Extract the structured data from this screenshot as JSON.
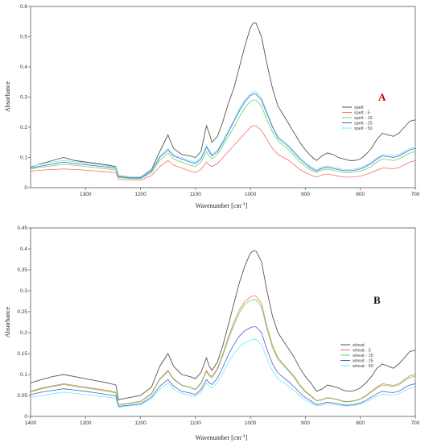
{
  "colors": {
    "series": [
      "#555555",
      "#ff6a6a",
      "#55dd55",
      "#5555cc",
      "#66eeff"
    ]
  },
  "chart_data": [
    {
      "type": "line",
      "panel_label": "A",
      "xlabel": "Wavenumber [cm",
      "xlabel_sup": "-1",
      "xlabel_end": "]",
      "ylabel": "Absorbance",
      "xlim": [
        1400,
        700
      ],
      "ylim": [
        0,
        0.6
      ],
      "x_reversed": true,
      "xticks": [
        1300,
        1200,
        1100,
        1000,
        900,
        800,
        700
      ],
      "yticks": [
        0,
        0.1,
        0.2,
        0.3,
        0.4,
        0.5,
        0.6
      ],
      "ytick_labels": [
        "0",
        "0.1",
        "0.2",
        "0.3",
        "0.4",
        "0.5",
        "0.6"
      ],
      "legend_position": "right",
      "x": [
        1400,
        1380,
        1360,
        1340,
        1320,
        1300,
        1280,
        1260,
        1245,
        1240,
        1220,
        1200,
        1180,
        1165,
        1150,
        1140,
        1125,
        1110,
        1100,
        1090,
        1080,
        1075,
        1070,
        1060,
        1050,
        1040,
        1030,
        1020,
        1010,
        1000,
        995,
        990,
        980,
        970,
        960,
        950,
        940,
        930,
        920,
        910,
        900,
        890,
        880,
        870,
        860,
        850,
        840,
        830,
        820,
        810,
        800,
        790,
        780,
        770,
        760,
        750,
        740,
        730,
        720,
        710,
        700
      ],
      "series": [
        {
          "name": "spelt",
          "values": [
            0.068,
            0.08,
            0.09,
            0.1,
            0.09,
            0.085,
            0.08,
            0.075,
            0.07,
            0.04,
            0.035,
            0.035,
            0.06,
            0.12,
            0.175,
            0.13,
            0.11,
            0.105,
            0.1,
            0.12,
            0.205,
            0.18,
            0.15,
            0.17,
            0.22,
            0.28,
            0.33,
            0.4,
            0.47,
            0.53,
            0.545,
            0.545,
            0.5,
            0.41,
            0.33,
            0.27,
            0.24,
            0.21,
            0.18,
            0.15,
            0.125,
            0.105,
            0.09,
            0.105,
            0.115,
            0.11,
            0.1,
            0.095,
            0.09,
            0.09,
            0.095,
            0.11,
            0.13,
            0.16,
            0.18,
            0.175,
            0.17,
            0.18,
            0.2,
            0.22,
            0.225
          ]
        },
        {
          "name": "spelt - 5",
          "values": [
            0.055,
            0.058,
            0.06,
            0.062,
            0.06,
            0.058,
            0.055,
            0.052,
            0.05,
            0.028,
            0.025,
            0.025,
            0.04,
            0.07,
            0.09,
            0.075,
            0.065,
            0.055,
            0.05,
            0.06,
            0.085,
            0.075,
            0.07,
            0.08,
            0.1,
            0.12,
            0.14,
            0.16,
            0.18,
            0.2,
            0.205,
            0.205,
            0.19,
            0.16,
            0.13,
            0.11,
            0.1,
            0.09,
            0.075,
            0.06,
            0.05,
            0.042,
            0.035,
            0.042,
            0.045,
            0.042,
            0.038,
            0.035,
            0.035,
            0.036,
            0.038,
            0.044,
            0.05,
            0.058,
            0.065,
            0.064,
            0.063,
            0.066,
            0.075,
            0.085,
            0.09
          ]
        },
        {
          "name": "spelt - 15",
          "values": [
            0.062,
            0.068,
            0.072,
            0.078,
            0.074,
            0.07,
            0.066,
            0.062,
            0.058,
            0.034,
            0.03,
            0.03,
            0.05,
            0.09,
            0.115,
            0.095,
            0.085,
            0.075,
            0.07,
            0.085,
            0.12,
            0.105,
            0.095,
            0.11,
            0.14,
            0.17,
            0.2,
            0.235,
            0.265,
            0.285,
            0.29,
            0.29,
            0.27,
            0.225,
            0.185,
            0.155,
            0.14,
            0.125,
            0.105,
            0.085,
            0.07,
            0.058,
            0.05,
            0.058,
            0.062,
            0.058,
            0.054,
            0.05,
            0.05,
            0.052,
            0.055,
            0.062,
            0.07,
            0.085,
            0.095,
            0.093,
            0.09,
            0.095,
            0.105,
            0.115,
            0.12
          ]
        },
        {
          "name": "spelt - 25",
          "values": [
            0.065,
            0.072,
            0.078,
            0.085,
            0.08,
            0.076,
            0.072,
            0.068,
            0.064,
            0.037,
            0.032,
            0.032,
            0.055,
            0.1,
            0.125,
            0.105,
            0.095,
            0.085,
            0.08,
            0.095,
            0.135,
            0.12,
            0.105,
            0.12,
            0.15,
            0.185,
            0.22,
            0.255,
            0.285,
            0.305,
            0.31,
            0.31,
            0.29,
            0.245,
            0.2,
            0.165,
            0.15,
            0.135,
            0.115,
            0.095,
            0.078,
            0.065,
            0.055,
            0.064,
            0.068,
            0.064,
            0.06,
            0.056,
            0.056,
            0.058,
            0.062,
            0.07,
            0.08,
            0.095,
            0.105,
            0.103,
            0.1,
            0.105,
            0.115,
            0.125,
            0.13
          ]
        },
        {
          "name": "spelt - 50",
          "values": [
            0.07,
            0.078,
            0.085,
            0.09,
            0.086,
            0.082,
            0.077,
            0.072,
            0.068,
            0.04,
            0.035,
            0.035,
            0.058,
            0.105,
            0.13,
            0.11,
            0.1,
            0.09,
            0.085,
            0.1,
            0.14,
            0.125,
            0.11,
            0.125,
            0.155,
            0.19,
            0.225,
            0.262,
            0.292,
            0.312,
            0.318,
            0.318,
            0.298,
            0.252,
            0.206,
            0.17,
            0.155,
            0.14,
            0.12,
            0.1,
            0.083,
            0.07,
            0.06,
            0.068,
            0.072,
            0.068,
            0.064,
            0.06,
            0.06,
            0.062,
            0.066,
            0.074,
            0.084,
            0.1,
            0.11,
            0.108,
            0.105,
            0.11,
            0.12,
            0.13,
            0.135
          ]
        }
      ]
    },
    {
      "type": "line",
      "panel_label": "B",
      "xlabel": "Wavenumber [cm",
      "xlabel_sup": "-1",
      "xlabel_end": "]",
      "ylabel": "Absorbance",
      "xlim": [
        1400,
        700
      ],
      "ylim": [
        0,
        0.45
      ],
      "x_reversed": true,
      "xticks": [
        1400,
        1300,
        1200,
        1100,
        1000,
        900,
        800,
        700
      ],
      "yticks": [
        0,
        0.05,
        0.1,
        0.15,
        0.2,
        0.25,
        0.3,
        0.35,
        0.4,
        0.45
      ],
      "ytick_labels": [
        "0",
        "0.05",
        "0.1",
        "0.15",
        "0.2",
        "0.25",
        "0.3",
        "0.35",
        "0.4",
        "0.45"
      ],
      "legend_position": "right",
      "x": [
        1400,
        1380,
        1360,
        1340,
        1320,
        1300,
        1280,
        1260,
        1245,
        1240,
        1220,
        1200,
        1180,
        1165,
        1150,
        1140,
        1125,
        1110,
        1100,
        1090,
        1080,
        1075,
        1070,
        1060,
        1050,
        1040,
        1030,
        1020,
        1010,
        1000,
        995,
        990,
        980,
        970,
        960,
        950,
        940,
        930,
        920,
        910,
        900,
        890,
        880,
        870,
        860,
        850,
        840,
        830,
        820,
        810,
        800,
        790,
        780,
        770,
        760,
        750,
        740,
        730,
        720,
        710,
        700
      ],
      "series": [
        {
          "name": "wheat",
          "values": [
            0.08,
            0.088,
            0.095,
            0.1,
            0.095,
            0.09,
            0.085,
            0.08,
            0.075,
            0.04,
            0.045,
            0.05,
            0.07,
            0.12,
            0.15,
            0.12,
            0.1,
            0.095,
            0.09,
            0.105,
            0.14,
            0.12,
            0.11,
            0.13,
            0.17,
            0.22,
            0.27,
            0.32,
            0.36,
            0.39,
            0.395,
            0.395,
            0.37,
            0.3,
            0.24,
            0.2,
            0.18,
            0.16,
            0.14,
            0.115,
            0.095,
            0.08,
            0.06,
            0.065,
            0.075,
            0.072,
            0.068,
            0.062,
            0.06,
            0.062,
            0.068,
            0.08,
            0.095,
            0.115,
            0.125,
            0.12,
            0.115,
            0.125,
            0.14,
            0.155,
            0.158
          ]
        },
        {
          "name": "wheat - 5",
          "values": [
            0.06,
            0.068,
            0.073,
            0.078,
            0.074,
            0.07,
            0.066,
            0.062,
            0.058,
            0.028,
            0.032,
            0.036,
            0.055,
            0.09,
            0.11,
            0.09,
            0.075,
            0.07,
            0.065,
            0.08,
            0.11,
            0.1,
            0.095,
            0.115,
            0.15,
            0.19,
            0.225,
            0.255,
            0.275,
            0.285,
            0.288,
            0.288,
            0.27,
            0.215,
            0.17,
            0.14,
            0.125,
            0.11,
            0.095,
            0.075,
            0.06,
            0.05,
            0.038,
            0.04,
            0.045,
            0.043,
            0.04,
            0.036,
            0.036,
            0.038,
            0.042,
            0.05,
            0.06,
            0.07,
            0.078,
            0.076,
            0.074,
            0.078,
            0.088,
            0.097,
            0.1
          ]
        },
        {
          "name": "wheat - 15",
          "values": [
            0.058,
            0.066,
            0.071,
            0.076,
            0.072,
            0.068,
            0.064,
            0.06,
            0.056,
            0.027,
            0.031,
            0.035,
            0.053,
            0.088,
            0.108,
            0.088,
            0.074,
            0.069,
            0.064,
            0.078,
            0.107,
            0.097,
            0.092,
            0.112,
            0.146,
            0.185,
            0.218,
            0.248,
            0.268,
            0.277,
            0.279,
            0.279,
            0.262,
            0.209,
            0.165,
            0.136,
            0.122,
            0.107,
            0.092,
            0.073,
            0.058,
            0.048,
            0.037,
            0.039,
            0.044,
            0.042,
            0.039,
            0.035,
            0.035,
            0.037,
            0.041,
            0.048,
            0.058,
            0.068,
            0.075,
            0.073,
            0.071,
            0.075,
            0.085,
            0.093,
            0.096
          ]
        },
        {
          "name": "wheat - 25",
          "values": [
            0.052,
            0.058,
            0.062,
            0.066,
            0.063,
            0.06,
            0.056,
            0.052,
            0.049,
            0.024,
            0.027,
            0.03,
            0.046,
            0.072,
            0.088,
            0.072,
            0.06,
            0.056,
            0.052,
            0.064,
            0.088,
            0.08,
            0.076,
            0.092,
            0.118,
            0.148,
            0.172,
            0.192,
            0.205,
            0.212,
            0.214,
            0.214,
            0.2,
            0.16,
            0.126,
            0.104,
            0.093,
            0.082,
            0.07,
            0.056,
            0.045,
            0.037,
            0.028,
            0.03,
            0.034,
            0.032,
            0.03,
            0.027,
            0.027,
            0.029,
            0.032,
            0.038,
            0.046,
            0.054,
            0.06,
            0.058,
            0.057,
            0.06,
            0.068,
            0.075,
            0.078
          ]
        },
        {
          "name": "wheat - 50",
          "values": [
            0.045,
            0.05,
            0.054,
            0.058,
            0.055,
            0.052,
            0.049,
            0.046,
            0.043,
            0.022,
            0.025,
            0.028,
            0.042,
            0.065,
            0.08,
            0.065,
            0.055,
            0.051,
            0.047,
            0.058,
            0.08,
            0.072,
            0.068,
            0.082,
            0.104,
            0.13,
            0.15,
            0.166,
            0.176,
            0.182,
            0.184,
            0.184,
            0.172,
            0.138,
            0.109,
            0.09,
            0.081,
            0.071,
            0.061,
            0.049,
            0.039,
            0.032,
            0.025,
            0.027,
            0.03,
            0.029,
            0.027,
            0.025,
            0.025,
            0.026,
            0.029,
            0.034,
            0.041,
            0.048,
            0.053,
            0.052,
            0.051,
            0.054,
            0.061,
            0.067,
            0.07
          ]
        }
      ]
    }
  ]
}
